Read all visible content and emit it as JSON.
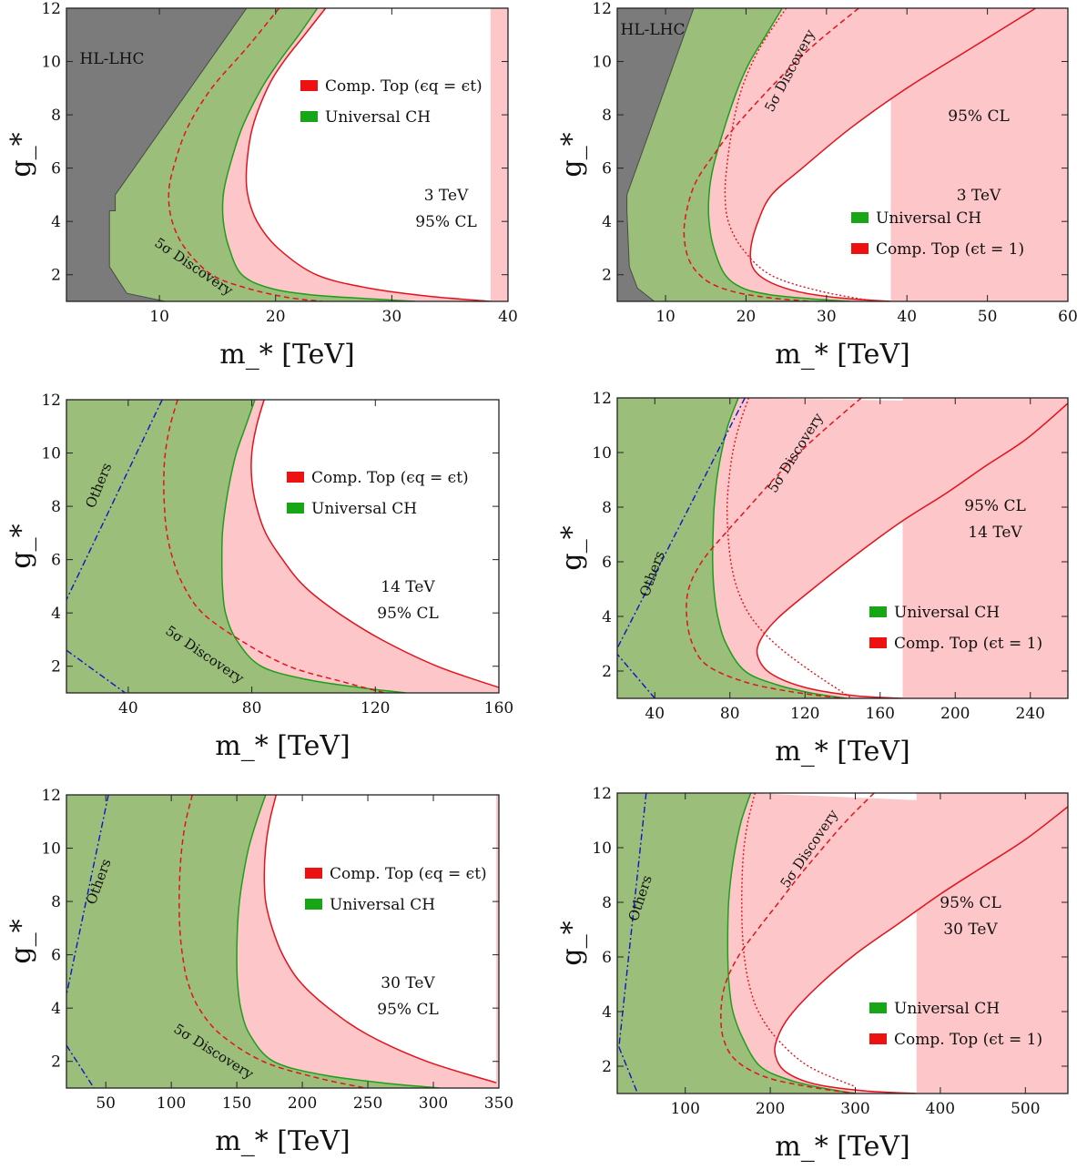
{
  "colors": {
    "green_fill": "#9bbf7a",
    "green_line": "#1aa01a",
    "pink_fill": "#fdc6c8",
    "red_line": "#e3121b",
    "gray_fill": "#7b7b7b",
    "gray_line": "#4a4a4a",
    "blue_line": "#1111cc"
  },
  "chart_data": [
    {
      "type": "area",
      "xlabel": "m_* [TeV]",
      "ylabel": "g_*",
      "xlim": [
        2,
        40
      ],
      "ylim": [
        1,
        12
      ],
      "xticks": [
        "10",
        "20",
        "30",
        "40"
      ],
      "yticks": [
        "2",
        "4",
        "6",
        "8",
        "10",
        "12"
      ],
      "grid": false,
      "legend_position": "center-right",
      "legend": [
        "Comp. Top (ϵq = ϵt)",
        "Universal CH"
      ],
      "annotations": [
        "3 TeV",
        "95% CL",
        "5σ Discovery",
        "HL-LHC"
      ],
      "series": [
        {
          "name": "Universal CH",
          "x": [
            23.6,
            22,
            20.3,
            18.8,
            17.1,
            16,
            15.5,
            15.5,
            16,
            17.1,
            19.5,
            23,
            28,
            32
          ],
          "y": [
            12,
            11,
            10,
            9,
            7.5,
            6,
            5,
            4,
            3,
            2,
            1.5,
            1.25,
            1.1,
            1
          ]
        },
        {
          "name": "Comp. Top (ϵq = ϵt)",
          "x": [
            24.3,
            22.5,
            20.7,
            19.3,
            18,
            17.5,
            17.6,
            18.4,
            20.2,
            23.5,
            28,
            33,
            38.5
          ],
          "y": [
            12,
            11,
            10,
            9,
            7.5,
            6,
            5,
            4,
            3,
            2,
            1.5,
            1.2,
            1
          ]
        },
        {
          "name": "5σ Discovery",
          "x": [
            20.3,
            17.5,
            14.5,
            12.4,
            11.2,
            10.8,
            11.1,
            12.2,
            14.5,
            17.5,
            21,
            24
          ],
          "y": [
            12,
            10.5,
            9,
            7.5,
            6,
            5,
            4,
            3,
            2,
            1.5,
            1.15,
            1
          ]
        },
        {
          "name": "HL-LHC",
          "x": [
            2,
            17.5,
            6.2,
            6.2,
            5.7,
            5.7,
            7.2,
            10.5,
            2
          ],
          "y": [
            12,
            12,
            5,
            4.4,
            4.4,
            2.3,
            1.3,
            1,
            1
          ]
        }
      ]
    },
    {
      "type": "area",
      "xlabel": "m_* [TeV]",
      "ylabel": "g_*",
      "xlim": [
        4,
        60
      ],
      "ylim": [
        1,
        12
      ],
      "xticks": [
        "10",
        "20",
        "30",
        "40",
        "50",
        "60"
      ],
      "yticks": [
        "2",
        "4",
        "6",
        "8",
        "10",
        "12"
      ],
      "grid": false,
      "legend_position": "bottom-right",
      "legend": [
        "Universal CH",
        "Comp. Top (ϵt = 1)"
      ],
      "annotations": [
        "95% CL",
        "3 TeV",
        "5σ Discovery",
        "HL-LHC"
      ],
      "series": [
        {
          "name": "Universal CH",
          "x": [
            24.5,
            22.5,
            20.5,
            19,
            17.3,
            15.9,
            15.4,
            15.4,
            16,
            17.4,
            19.6,
            23,
            28,
            33
          ],
          "y": [
            12,
            11,
            10,
            9,
            7.5,
            6,
            5,
            4,
            3,
            2,
            1.5,
            1.25,
            1.1,
            1
          ]
        },
        {
          "name": "Comp. Top (ϵt = 1)",
          "x": [
            56,
            48,
            40,
            33,
            27,
            23.2,
            21.5,
            20.6,
            20.8,
            22.5,
            26,
            31,
            38
          ],
          "y": [
            12,
            10.5,
            9,
            7.5,
            6,
            5,
            4,
            3,
            2.3,
            1.8,
            1.4,
            1.15,
            1
          ]
        },
        {
          "name": "5σ Discovery",
          "x": [
            34,
            28,
            23,
            18.5,
            16,
            13.8,
            12.7,
            12.3,
            13,
            15,
            18,
            22.5,
            28
          ],
          "y": [
            12,
            10.5,
            9,
            7.5,
            6.5,
            5.5,
            4.5,
            3.5,
            2.5,
            1.8,
            1.4,
            1.15,
            1
          ]
        },
        {
          "name": "5σ Discovery (ϵt = 1)",
          "x": [
            25,
            21.7,
            19.5,
            18.3,
            17.6,
            17.4,
            17.8,
            19.5,
            23,
            29,
            36
          ],
          "y": [
            12,
            10.5,
            9,
            7.5,
            6,
            5,
            4,
            3,
            2,
            1.4,
            1
          ]
        },
        {
          "name": "HL-LHC",
          "x": [
            4,
            13.5,
            5.2,
            5.2,
            5.5,
            6.5,
            8.6,
            4
          ],
          "y": [
            12,
            12,
            5,
            4.4,
            2.3,
            1.5,
            1,
            1
          ]
        }
      ]
    },
    {
      "type": "area",
      "xlabel": "m_* [TeV]",
      "ylabel": "g_*",
      "xlim": [
        20,
        160
      ],
      "ylim": [
        1,
        12
      ],
      "xticks": [
        "40",
        "80",
        "120",
        "160"
      ],
      "yticks": [
        "2",
        "4",
        "6",
        "8",
        "10",
        "12"
      ],
      "grid": false,
      "legend_position": "center-right",
      "legend": [
        "Comp. Top (ϵq = ϵt)",
        "Universal CH"
      ],
      "annotations": [
        "14 TeV",
        "95% CL",
        "5σ Discovery",
        "Others"
      ],
      "series": [
        {
          "name": "Universal CH",
          "x": [
            81,
            78,
            75,
            73,
            71.5,
            70.5,
            70.3,
            70.5,
            71.5,
            75,
            83,
            98,
            115,
            130
          ],
          "y": [
            12,
            11,
            10,
            9,
            8,
            7,
            6,
            5,
            4,
            3,
            2,
            1.5,
            1.2,
            1
          ]
        },
        {
          "name": "Comp. Top (ϵq = ϵt)",
          "x": [
            84,
            81.5,
            80,
            80,
            81.5,
            84.5,
            90,
            97,
            108,
            122,
            140,
            160
          ],
          "y": [
            12,
            11,
            10,
            9,
            8,
            7,
            6,
            5,
            4,
            3,
            2,
            1.2
          ]
        },
        {
          "name": "5σ Discovery",
          "x": [
            56,
            53.5,
            52,
            51.5,
            51.7,
            52.5,
            54.5,
            58,
            64,
            76,
            92,
            110,
            123
          ],
          "y": [
            12,
            11,
            10,
            9,
            8,
            7,
            6,
            5,
            4,
            3,
            2,
            1.4,
            1
          ]
        },
        {
          "name": "Others",
          "x": [
            51,
            20
          ],
          "y": [
            12,
            4.5
          ]
        },
        {
          "name": "Others (low)",
          "x": [
            20,
            39
          ],
          "y": [
            2.6,
            1
          ]
        }
      ]
    },
    {
      "type": "area",
      "xlabel": "m_* [TeV]",
      "ylabel": "g_*",
      "xlim": [
        20,
        260
      ],
      "ylim": [
        1,
        12
      ],
      "xticks": [
        "40",
        "80",
        "120",
        "160",
        "200",
        "240"
      ],
      "yticks": [
        "2",
        "4",
        "6",
        "8",
        "10",
        "12"
      ],
      "grid": false,
      "legend_position": "bottom-right",
      "legend": [
        "Universal CH",
        "Comp. Top (ϵt = 1)"
      ],
      "annotations": [
        "95% CL",
        "14 TeV",
        "5σ Discovery",
        "Others"
      ],
      "series": [
        {
          "name": "Universal CH",
          "x": [
            84.5,
            79,
            75.5,
            73,
            71.6,
            71,
            70.8,
            71.5,
            73.5,
            78,
            88,
            105,
            123,
            142
          ],
          "y": [
            12,
            11,
            10,
            9,
            8,
            7,
            6,
            5,
            4,
            3,
            2,
            1.5,
            1.2,
            1
          ]
        },
        {
          "name": "Comp. Top (ϵt = 1)",
          "x": [
            260,
            238,
            216,
            195,
            172,
            148,
            124,
            105,
            96,
            95,
            102,
            120,
            146,
            172
          ],
          "y": [
            11.8,
            10.5,
            9.5,
            8.5,
            7.5,
            6.3,
            5,
            3.9,
            3.1,
            2.5,
            1.9,
            1.4,
            1.1,
            1
          ]
        },
        {
          "name": "5σ Discovery",
          "x": [
            150,
            133,
            117,
            103,
            90,
            77,
            65,
            58,
            57,
            60,
            68,
            88,
            112,
            140
          ],
          "y": [
            12,
            11,
            10,
            9,
            8,
            7,
            6,
            5,
            4,
            3,
            2.2,
            1.6,
            1.25,
            1
          ]
        },
        {
          "name": "5σ Discovery (ϵt = 1)",
          "x": [
            90,
            85,
            81.5,
            79.5,
            78.5,
            79,
            80.5,
            84,
            91,
            104,
            123,
            145
          ],
          "y": [
            12,
            11,
            10,
            9,
            8,
            7,
            6,
            5,
            4,
            3,
            2,
            1
          ]
        },
        {
          "name": "Others",
          "x": [
            88,
            19
          ],
          "y": [
            12,
            2.7
          ]
        },
        {
          "name": "Others (low)",
          "x": [
            19,
            40
          ],
          "y": [
            2.7,
            1
          ]
        }
      ]
    },
    {
      "type": "area",
      "xlabel": "m_* [TeV]",
      "ylabel": "g_*",
      "xlim": [
        20,
        350
      ],
      "ylim": [
        1,
        12
      ],
      "xticks": [
        "50",
        "100",
        "150",
        "200",
        "250",
        "300",
        "350"
      ],
      "yticks": [
        "2",
        "4",
        "6",
        "8",
        "10",
        "12"
      ],
      "grid": false,
      "legend_position": "center-right",
      "legend": [
        "Comp. Top (ϵq = ϵt)",
        "Universal CH"
      ],
      "annotations": [
        "30 TeV",
        "95% CL",
        "5σ Discovery",
        "Others"
      ],
      "series": [
        {
          "name": "Universal CH",
          "x": [
            172,
            165,
            159,
            155,
            152,
            150.5,
            150,
            150.5,
            153,
            160,
            178,
            215,
            260,
            305
          ],
          "y": [
            12,
            11,
            10,
            9,
            8,
            7,
            6,
            5,
            4,
            3,
            2,
            1.5,
            1.2,
            1
          ]
        },
        {
          "name": "Comp. Top (ϵq = ϵt)",
          "x": [
            180,
            175,
            172,
            171,
            172,
            177,
            185,
            198,
            220,
            250,
            295,
            348
          ],
          "y": [
            12,
            11,
            10,
            9,
            8,
            7,
            6,
            5,
            4,
            3,
            2,
            1.2
          ]
        },
        {
          "name": "5σ Discovery",
          "x": [
            116,
            111,
            108,
            106.5,
            106,
            106.5,
            108.5,
            112.5,
            121,
            138,
            170,
            210,
            248
          ],
          "y": [
            12,
            11,
            10,
            9,
            8,
            7,
            6,
            5,
            4,
            3,
            2,
            1.4,
            1
          ]
        },
        {
          "name": "Others",
          "x": [
            52,
            20
          ],
          "y": [
            12,
            4.5
          ]
        },
        {
          "name": "Others (low)",
          "x": [
            20,
            41
          ],
          "y": [
            2.6,
            1
          ]
        }
      ]
    },
    {
      "type": "area",
      "xlabel": "m_* [TeV]",
      "ylabel": "g_*",
      "xlim": [
        20,
        550
      ],
      "ylim": [
        1,
        12
      ],
      "xticks": [
        "100",
        "200",
        "300",
        "400",
        "500"
      ],
      "yticks": [
        "2",
        "4",
        "6",
        "8",
        "10",
        "12"
      ],
      "grid": false,
      "legend_position": "bottom-right",
      "legend": [
        "Universal CH",
        "Comp. Top (ϵt = 1)"
      ],
      "annotations": [
        "95% CL",
        "30 TeV",
        "5σ Discovery",
        "Others"
      ],
      "series": [
        {
          "name": "Universal CH",
          "x": [
            177,
            166,
            159,
            154,
            151,
            150,
            150,
            151.5,
            156,
            168,
            188,
            222,
            262,
            300
          ],
          "y": [
            12,
            11,
            10,
            9,
            8,
            7,
            6,
            5,
            4,
            3,
            2,
            1.5,
            1.2,
            1
          ]
        },
        {
          "name": "Comp. Top (ϵt = 1)",
          "x": [
            550,
            500,
            450,
            400,
            350,
            300,
            255,
            222,
            208,
            206,
            218,
            252,
            310,
            372
          ],
          "y": [
            11.5,
            10.3,
            9.3,
            8.3,
            7.2,
            6.1,
            4.9,
            3.8,
            3,
            2.4,
            1.8,
            1.35,
            1.1,
            1
          ]
        },
        {
          "name": "5σ Discovery",
          "x": [
            322,
            290,
            262,
            235,
            210,
            185,
            162,
            147,
            142,
            145,
            160,
            195,
            245,
            300
          ],
          "y": [
            12,
            11,
            10,
            9,
            8,
            7,
            6,
            5,
            4,
            3,
            2.2,
            1.6,
            1.25,
            1
          ]
        },
        {
          "name": "5σ Discovery (ϵt = 1)",
          "x": [
            182,
            174,
            169,
            167,
            166.5,
            167,
            169.5,
            175,
            186,
            208,
            245,
            300
          ],
          "y": [
            12,
            11,
            10,
            9,
            8,
            7,
            6,
            5,
            4,
            3,
            2,
            1.25
          ]
        },
        {
          "name": "Others",
          "x": [
            54,
            22
          ],
          "y": [
            12,
            2.7
          ]
        },
        {
          "name": "Others (low)",
          "x": [
            22,
            44
          ],
          "y": [
            2.7,
            1
          ]
        }
      ]
    }
  ]
}
